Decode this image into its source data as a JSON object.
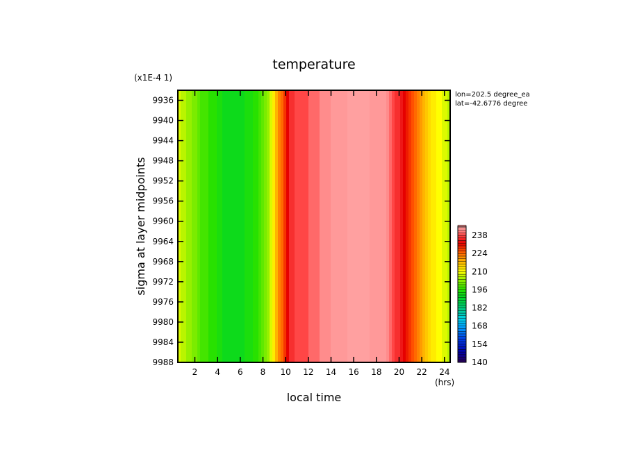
{
  "chart_data": {
    "type": "heatmap",
    "title": "temperature",
    "scale_note": "(x1E-4 1)",
    "xlabel": "local time",
    "x_unit": "(hrs)",
    "ylabel": "sigma at layer midpoints",
    "annotation_lon": "lon=202.5 degree_ea",
    "annotation_lat": "lat=-42.6776 degree",
    "xlim": [
      0.5,
      24.5
    ],
    "ylim": [
      9988,
      9934
    ],
    "x_ticks": [
      2,
      4,
      6,
      8,
      10,
      12,
      14,
      16,
      18,
      20,
      22,
      24
    ],
    "y_ticks": [
      9936,
      9940,
      9944,
      9948,
      9952,
      9956,
      9960,
      9964,
      9968,
      9972,
      9976,
      9980,
      9984,
      9988
    ],
    "colorbar": {
      "min": 140,
      "max": 245,
      "ticks": [
        140,
        154,
        168,
        182,
        196,
        210,
        224,
        238
      ]
    },
    "profile": {
      "description": "temperature vs local time, approximately constant over sigma",
      "x": [
        0.5,
        1.5,
        2.5,
        3.5,
        4.5,
        5.5,
        6.5,
        7.5,
        8.5,
        9.0,
        9.5,
        10.0,
        10.5,
        11.0,
        11.5,
        12.5,
        13.5,
        14.5,
        15.5,
        16.5,
        17.5,
        18.5,
        19.0,
        19.5,
        20.0,
        20.5,
        21.0,
        21.5,
        22.0,
        22.5,
        23.0,
        23.5,
        24.0,
        24.5
      ],
      "y": [
        208,
        204,
        199,
        196,
        193,
        192,
        193,
        196,
        204,
        214,
        222,
        230,
        236,
        238,
        238,
        240,
        242,
        244,
        245,
        245,
        245,
        244,
        242,
        238,
        235,
        232,
        228,
        224,
        220,
        216,
        212,
        210,
        208,
        206
      ]
    }
  }
}
